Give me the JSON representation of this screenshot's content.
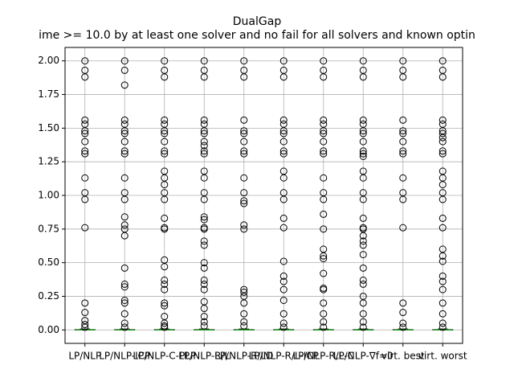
{
  "chart_data": {
    "type": "box",
    "title": "DualGap",
    "subtitle": "ime >= 10.0 by at least one solver and no fail for all solvers and known optin",
    "categories": [
      "LP/NLP",
      "LP/NLP-ICP",
      "LP/NLP-C-PLP",
      "LP/NLP-R/L",
      "LP/NLP-R/LD",
      "LP/NLP-R/L-ICP",
      "LP/NLP-R/L-C",
      "LP/NLP-∇f=0",
      "virt. best",
      "virt. worst"
    ],
    "ylim": [
      -0.1,
      2.1
    ],
    "yticks": [
      {
        "value": 0,
        "label": "0.00"
      },
      {
        "value": 0.25,
        "label": "0.25"
      },
      {
        "value": 0.5,
        "label": "0.50"
      },
      {
        "value": 0.75,
        "label": "0.75"
      },
      {
        "value": 1,
        "label": "1.00"
      },
      {
        "value": 1.25,
        "label": "1.25"
      },
      {
        "value": 1.5,
        "label": "1.50"
      },
      {
        "value": 1.75,
        "label": "1.75"
      },
      {
        "value": 2,
        "label": "2.00"
      }
    ],
    "grid": true,
    "box_color": "#000000",
    "median_color": "#2ca02c",
    "boxes": [
      {
        "whislo": 0,
        "q1": 0,
        "med": 0,
        "q3": 0.003,
        "whishi": 0.007,
        "fliers": [
          2.0,
          1.93,
          1.88,
          1.56,
          1.53,
          1.48,
          1.46,
          1.4,
          1.33,
          1.31,
          1.13,
          1.02,
          0.97,
          0.76,
          0.2,
          0.13,
          0.07,
          0.04,
          0.02
        ]
      },
      {
        "whislo": 0,
        "q1": 0,
        "med": 0,
        "q3": 0.003,
        "whishi": 0.007,
        "fliers": [
          2.0,
          1.93,
          1.82,
          1.56,
          1.53,
          1.48,
          1.46,
          1.4,
          1.33,
          1.31,
          1.13,
          1.02,
          0.97,
          0.84,
          0.78,
          0.75,
          0.7,
          0.46,
          0.34,
          0.32,
          0.22,
          0.2,
          0.12,
          0.05,
          0.02
        ]
      },
      {
        "whislo": 0,
        "q1": 0,
        "med": 0,
        "q3": 0.003,
        "whishi": 0.007,
        "fliers": [
          2.0,
          1.93,
          1.88,
          1.56,
          1.53,
          1.48,
          1.46,
          1.4,
          1.33,
          1.31,
          1.18,
          1.13,
          1.08,
          1.02,
          0.97,
          0.83,
          0.76,
          0.75,
          0.52,
          0.47,
          0.37,
          0.34,
          0.3,
          0.2,
          0.18,
          0.1,
          0.05,
          0.03,
          0.02
        ]
      },
      {
        "whislo": 0,
        "q1": 0,
        "med": 0,
        "q3": 0.003,
        "whishi": 0.007,
        "fliers": [
          2.0,
          1.93,
          1.88,
          1.56,
          1.53,
          1.48,
          1.46,
          1.4,
          1.37,
          1.33,
          1.31,
          1.18,
          1.13,
          1.02,
          0.97,
          0.84,
          0.82,
          0.76,
          0.75,
          0.66,
          0.63,
          0.5,
          0.46,
          0.37,
          0.34,
          0.3,
          0.21,
          0.16,
          0.1,
          0.06,
          0.03
        ]
      },
      {
        "whislo": 0,
        "q1": 0,
        "med": 0,
        "q3": 0.003,
        "whishi": 0.007,
        "fliers": [
          2.0,
          1.93,
          1.88,
          1.56,
          1.48,
          1.46,
          1.4,
          1.33,
          1.31,
          1.13,
          1.02,
          0.96,
          0.94,
          0.78,
          0.75,
          0.3,
          0.28,
          0.25,
          0.2,
          0.12,
          0.06,
          0.03
        ]
      },
      {
        "whislo": 0,
        "q1": 0,
        "med": 0,
        "q3": 0.003,
        "whishi": 0.007,
        "fliers": [
          2.0,
          1.93,
          1.88,
          1.56,
          1.53,
          1.48,
          1.46,
          1.4,
          1.33,
          1.31,
          1.18,
          1.13,
          1.02,
          0.97,
          0.83,
          0.76,
          0.51,
          0.4,
          0.36,
          0.3,
          0.22,
          0.12,
          0.05,
          0.02
        ]
      },
      {
        "whislo": 0,
        "q1": 0,
        "med": 0,
        "q3": 0.003,
        "whishi": 0.007,
        "fliers": [
          2.0,
          1.93,
          1.88,
          1.56,
          1.53,
          1.48,
          1.46,
          1.4,
          1.33,
          1.31,
          1.13,
          1.02,
          0.97,
          0.86,
          0.75,
          0.6,
          0.55,
          0.53,
          0.42,
          0.31,
          0.3,
          0.2,
          0.12,
          0.06,
          0.02
        ]
      },
      {
        "whislo": 0,
        "q1": 0,
        "med": 0,
        "q3": 0.003,
        "whishi": 0.007,
        "fliers": [
          2.0,
          1.93,
          1.88,
          1.56,
          1.53,
          1.48,
          1.46,
          1.4,
          1.33,
          1.31,
          1.29,
          1.18,
          1.13,
          1.02,
          0.97,
          0.83,
          0.76,
          0.75,
          0.7,
          0.66,
          0.63,
          0.56,
          0.46,
          0.37,
          0.34,
          0.25,
          0.2,
          0.12,
          0.06,
          0.02
        ]
      },
      {
        "whislo": 0,
        "q1": 0,
        "med": 0,
        "q3": 0.003,
        "whishi": 0.007,
        "fliers": [
          2.0,
          1.93,
          1.88,
          1.56,
          1.48,
          1.46,
          1.4,
          1.33,
          1.31,
          1.13,
          1.02,
          0.97,
          0.76,
          0.2,
          0.13,
          0.05,
          0.02
        ]
      },
      {
        "whislo": 0,
        "q1": 0,
        "med": 0,
        "q3": 0.003,
        "whishi": 0.007,
        "fliers": [
          2.0,
          1.93,
          1.88,
          1.56,
          1.53,
          1.48,
          1.46,
          1.43,
          1.4,
          1.33,
          1.31,
          1.18,
          1.13,
          1.08,
          1.02,
          0.97,
          0.83,
          0.76,
          0.6,
          0.55,
          0.51,
          0.4,
          0.36,
          0.3,
          0.2,
          0.12,
          0.05,
          0.02
        ]
      }
    ]
  }
}
